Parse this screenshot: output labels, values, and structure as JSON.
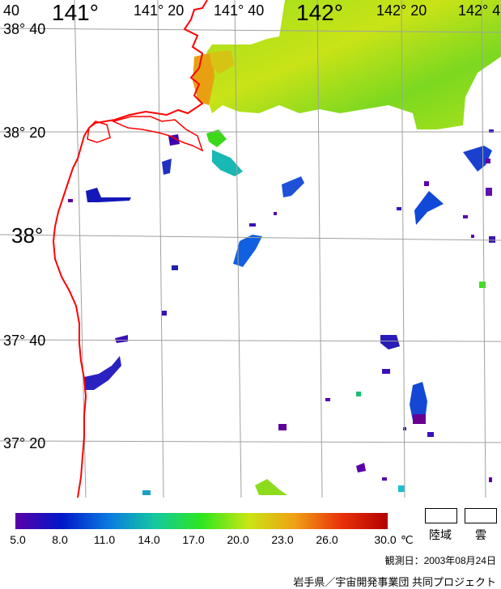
{
  "map": {
    "lon_labels": [
      {
        "text": "40",
        "kind": "small"
      },
      {
        "text": "141°",
        "kind": "big"
      },
      {
        "text": "141° 20",
        "kind": "small"
      },
      {
        "text": "141° 40",
        "kind": "small"
      },
      {
        "text": "142°",
        "kind": "big"
      },
      {
        "text": "142° 20",
        "kind": "small"
      },
      {
        "text": "142° 4",
        "kind": "small"
      }
    ],
    "lat_labels": [
      {
        "text": "38° 40",
        "kind": "small"
      },
      {
        "text": "38° 20",
        "kind": "small"
      },
      {
        "text": "38°",
        "kind": "big"
      },
      {
        "text": "37° 40",
        "kind": "small"
      },
      {
        "text": "37° 20",
        "kind": "small"
      }
    ],
    "colors": {
      "coastline": "#ff0000",
      "grid": "#a0a0a0",
      "land_green": "#7ad81e",
      "land_yellow": "#b8e31a"
    }
  },
  "colorbar": {
    "ticks": [
      "5.0",
      "8.0",
      "11.0",
      "14.0",
      "17.0",
      "20.0",
      "23.0",
      "26.0",
      "30.0"
    ],
    "unit": "℃",
    "min": 5.0,
    "max": 30.0,
    "colors": [
      "#5a00a8",
      "#0018c8",
      "#0a7ae0",
      "#14c8a0",
      "#2ee61e",
      "#c8e614",
      "#f0a014",
      "#e8320a",
      "#b40000"
    ]
  },
  "legend": {
    "land_label": "陸域",
    "cloud_label": "雲"
  },
  "footer": {
    "observation_date": "観測日：2003年08月24日",
    "credit": "岩手県／宇宙開発事業団 共同プロジェクト"
  }
}
